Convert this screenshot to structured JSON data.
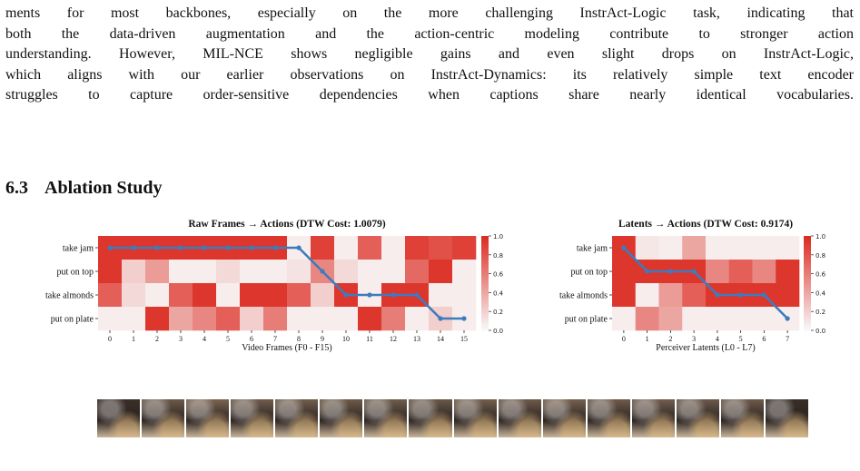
{
  "paragraph_lines": [
    "ments for most backbones, especially on the more challenging InstrAct-Logic task, indicating that",
    "both the data-driven augmentation and the action-centric modeling contribute to stronger action",
    "understanding. However, MIL-NCE shows negligible gains and even slight drops on InstrAct-Logic,",
    "which aligns with our earlier observations on InstrAct-Dynamics: its relatively simple text encoder",
    "struggles to capture order-sensitive dependencies when captions share nearly identical vocabularies."
  ],
  "section": {
    "number": "6.3",
    "title": "Ablation Study"
  },
  "colors": {
    "low": "#f7f7f7",
    "high": "#dc2c22",
    "path": "#3d7bbf"
  },
  "chart_data": [
    {
      "type": "heatmap",
      "title": "Raw Frames → Actions (DTW Cost: 1.0079)",
      "xlabel": "Video Frames (F0 - F15)",
      "ylabel": "",
      "x_ticks": [
        "0",
        "1",
        "2",
        "3",
        "4",
        "5",
        "6",
        "7",
        "8",
        "9",
        "10",
        "11",
        "12",
        "13",
        "14",
        "15"
      ],
      "y_ticks": [
        "take jam",
        "put on top",
        "take almonds",
        "put on plate"
      ],
      "colorbar_ticks": [
        "1.0",
        "0.8",
        "0.6",
        "0.4",
        "0.2",
        "0.0"
      ],
      "vmin": 0,
      "vmax": 1,
      "values": [
        [
          0.95,
          0.95,
          0.95,
          0.95,
          0.95,
          0.95,
          0.95,
          0.95,
          0.05,
          0.9,
          0.05,
          0.75,
          0.05,
          0.9,
          0.82,
          0.9
        ],
        [
          0.95,
          0.2,
          0.45,
          0.05,
          0.05,
          0.15,
          0.05,
          0.05,
          0.1,
          0.55,
          0.15,
          0.05,
          0.05,
          0.7,
          0.95,
          0.05
        ],
        [
          0.75,
          0.15,
          0.05,
          0.75,
          0.95,
          0.05,
          0.95,
          0.95,
          0.75,
          0.2,
          0.95,
          0.05,
          0.95,
          0.95,
          0.05,
          0.05
        ],
        [
          0.05,
          0.05,
          0.95,
          0.4,
          0.55,
          0.75,
          0.2,
          0.6,
          0.05,
          0.05,
          0.05,
          0.95,
          0.6,
          0.05,
          0.2,
          0.05
        ]
      ],
      "path": [
        [
          0,
          0
        ],
        [
          1,
          0
        ],
        [
          2,
          0
        ],
        [
          3,
          0
        ],
        [
          4,
          0
        ],
        [
          5,
          0
        ],
        [
          6,
          0
        ],
        [
          7,
          0
        ],
        [
          8,
          0
        ],
        [
          9,
          1
        ],
        [
          10,
          2
        ],
        [
          11,
          2
        ],
        [
          12,
          2
        ],
        [
          13,
          2
        ],
        [
          14,
          3
        ],
        [
          15,
          3
        ]
      ]
    },
    {
      "type": "heatmap",
      "title": "Latents → Actions (DTW Cost: 0.9174)",
      "xlabel": "Perceiver Latents (L0 - L7)",
      "ylabel": "",
      "x_ticks": [
        "0",
        "1",
        "2",
        "3",
        "4",
        "5",
        "6",
        "7"
      ],
      "y_ticks": [
        "take jam",
        "put on top",
        "take almonds",
        "put on plate"
      ],
      "colorbar_ticks": [
        "1.0",
        "0.8",
        "0.6",
        "0.4",
        "0.2",
        "0.0"
      ],
      "vmin": 0,
      "vmax": 1,
      "values": [
        [
          0.95,
          0.08,
          0.05,
          0.4,
          0.05,
          0.05,
          0.05,
          0.05
        ],
        [
          0.95,
          0.95,
          0.95,
          0.95,
          0.55,
          0.75,
          0.55,
          0.95
        ],
        [
          0.95,
          0.05,
          0.45,
          0.75,
          0.95,
          0.95,
          0.95,
          0.95
        ],
        [
          0.05,
          0.55,
          0.4,
          0.05,
          0.05,
          0.05,
          0.05,
          0.05
        ]
      ],
      "path": [
        [
          0,
          0
        ],
        [
          1,
          1
        ],
        [
          2,
          1
        ],
        [
          3,
          1
        ],
        [
          4,
          2
        ],
        [
          5,
          2
        ],
        [
          6,
          2
        ],
        [
          7,
          3
        ]
      ]
    }
  ]
}
